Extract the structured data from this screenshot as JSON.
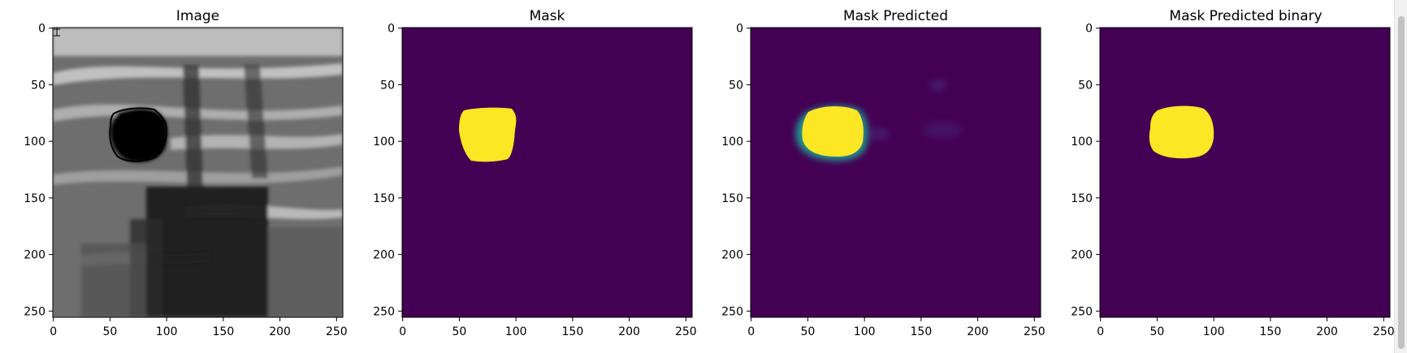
{
  "colors": {
    "mask_background": "#440154",
    "mask_foreground": "#fde725",
    "mask_edge": "#21918c",
    "mask_mid": "#3b528b",
    "image_dark": "#0a0a0a",
    "image_light": "#c8c8c8",
    "contour": "#000000"
  },
  "chart_data": [
    {
      "type": "image",
      "title": "Image",
      "xlim": [
        0,
        255
      ],
      "ylim": [
        255,
        0
      ],
      "xticks": [
        0,
        50,
        100,
        150,
        200,
        250
      ],
      "yticks": [
        0,
        50,
        100,
        150,
        200,
        250
      ],
      "colormap": "gray",
      "annotations": [
        "lesion contour outline (black)"
      ]
    },
    {
      "type": "image",
      "title": "Mask",
      "xlim": [
        0,
        255
      ],
      "ylim": [
        255,
        0
      ],
      "xticks": [
        0,
        50,
        100,
        150,
        200,
        250
      ],
      "yticks": [
        0,
        50,
        100,
        150,
        200,
        250
      ],
      "colormap": "viridis",
      "region": {
        "x_range": [
          50,
          100
        ],
        "y_range": [
          70,
          117
        ],
        "value": 1
      }
    },
    {
      "type": "image",
      "title": "Mask Predicted",
      "xlim": [
        0,
        255
      ],
      "ylim": [
        255,
        0
      ],
      "xticks": [
        0,
        50,
        100,
        150,
        200,
        250
      ],
      "yticks": [
        0,
        50,
        100,
        150,
        200,
        250
      ],
      "colormap": "viridis",
      "region": {
        "x_range": [
          40,
          103
        ],
        "y_range": [
          67,
          114
        ],
        "value": 1,
        "soft_edges": true
      }
    },
    {
      "type": "image",
      "title": "Mask Predicted binary",
      "xlim": [
        0,
        255
      ],
      "ylim": [
        255,
        0
      ],
      "xticks": [
        0,
        50,
        100,
        150,
        200,
        250
      ],
      "yticks": [
        0,
        50,
        100,
        150,
        200,
        250
      ],
      "colormap": "viridis",
      "region": {
        "x_range": [
          45,
          100
        ],
        "y_range": [
          68,
          114
        ],
        "value": 1
      }
    }
  ]
}
